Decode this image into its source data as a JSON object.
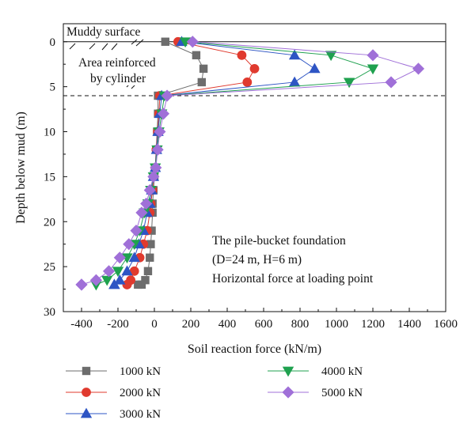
{
  "chart_data": {
    "type": "line",
    "xlabel": "Soil reaction force (kN/m)",
    "ylabel": "Depth below mud (m)",
    "xlim": [
      -500,
      1600
    ],
    "ylim": [
      -2,
      30
    ],
    "y_inverted": true,
    "x_ticks": [
      -400,
      -200,
      0,
      200,
      400,
      600,
      800,
      1000,
      1200,
      1400,
      1600
    ],
    "y_ticks": [
      0,
      5,
      10,
      15,
      20,
      25,
      30
    ],
    "annotations": {
      "muddy_surface": "Muddy surface",
      "reinforced_line1": "Area reinforced",
      "reinforced_line2": "by cylinder",
      "foundation_line1": "The pile-bucket foundation",
      "foundation_line2": "(D=24 m, H=6 m)",
      "foundation_line3": "Horizontal force at loading point"
    },
    "reference_lines": [
      {
        "style": "solid",
        "depth": 0
      },
      {
        "style": "dashed",
        "depth": 6
      }
    ],
    "legend_placement": "bottom",
    "series": [
      {
        "name": "1000 kN",
        "color": "#6d6d6d",
        "marker": "square",
        "x": [
          60,
          230,
          270,
          260,
          20,
          20,
          15,
          10,
          5,
          0,
          -5,
          -10,
          -10,
          -15,
          -20,
          -25,
          -35,
          -50,
          -70,
          -90
        ],
        "y": [
          0,
          1.5,
          3,
          4.5,
          6,
          8,
          10,
          12,
          14,
          15,
          16.5,
          18,
          19,
          21,
          22.5,
          24,
          25.5,
          26.5,
          27,
          27
        ]
      },
      {
        "name": "2000 kN",
        "color": "#e03a2e",
        "marker": "circle",
        "x": [
          130,
          480,
          550,
          510,
          30,
          25,
          18,
          10,
          5,
          -5,
          -10,
          -20,
          -25,
          -40,
          -60,
          -80,
          -110,
          -130,
          -150,
          -150
        ],
        "y": [
          0,
          1.5,
          3,
          4.5,
          6,
          8,
          10,
          12,
          14,
          15,
          16.5,
          18,
          19,
          21,
          22.5,
          24,
          25.5,
          26.5,
          27,
          27
        ]
      },
      {
        "name": "3000 kN",
        "color": "#2e55c4",
        "marker": "triangle-up",
        "x": [
          150,
          770,
          880,
          770,
          40,
          30,
          20,
          12,
          5,
          -5,
          -15,
          -25,
          -40,
          -60,
          -85,
          -110,
          -150,
          -190,
          -220,
          -220
        ],
        "y": [
          0,
          1.5,
          3,
          4.5,
          6,
          8,
          10,
          12,
          14,
          15,
          16.5,
          18,
          19,
          21,
          22.5,
          24,
          25.5,
          26.5,
          27,
          27
        ]
      },
      {
        "name": "4000 kN",
        "color": "#1fa14f",
        "marker": "triangle-down",
        "x": [
          170,
          970,
          1200,
          1070,
          55,
          40,
          25,
          15,
          5,
          -5,
          -20,
          -35,
          -55,
          -80,
          -110,
          -150,
          -200,
          -260,
          -320,
          -320
        ],
        "y": [
          0,
          1.5,
          3,
          4.5,
          6,
          8,
          10,
          12,
          14,
          15,
          16.5,
          18,
          19,
          21,
          22.5,
          24,
          25.5,
          26.5,
          27,
          27
        ]
      },
      {
        "name": "5000 kN",
        "color": "#a070d8",
        "marker": "diamond",
        "x": [
          210,
          1200,
          1450,
          1300,
          70,
          50,
          30,
          18,
          8,
          -5,
          -25,
          -45,
          -70,
          -100,
          -140,
          -190,
          -250,
          -320,
          -400,
          -400
        ],
        "y": [
          0,
          1.5,
          3,
          4.5,
          6,
          8,
          10,
          12,
          14,
          15,
          16.5,
          18,
          19,
          21,
          22.5,
          24,
          25.5,
          26.5,
          27,
          27
        ]
      }
    ]
  }
}
